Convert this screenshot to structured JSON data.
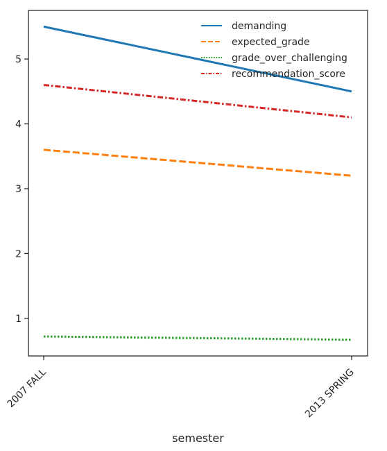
{
  "chart_data": {
    "type": "line",
    "title": "",
    "xlabel": "semester",
    "ylabel": "",
    "categories": [
      "2007 FALL",
      "2013 SPRING"
    ],
    "ylim": [
      0.42,
      5.75
    ],
    "yticks": [
      1,
      2,
      3,
      4,
      5
    ],
    "grid": false,
    "legend_position": "top-right",
    "series": [
      {
        "name": "demanding",
        "values": [
          5.5,
          4.5
        ],
        "color": "#1f77b4",
        "style": "solid"
      },
      {
        "name": "expected_grade",
        "values": [
          3.6,
          3.2
        ],
        "color": "#ff7f0e",
        "style": "dashed"
      },
      {
        "name": "grade_over_challenging",
        "values": [
          0.72,
          0.67
        ],
        "color": "#2ca02c",
        "style": "dotted"
      },
      {
        "name": "recommendation_score",
        "values": [
          4.6,
          4.1
        ],
        "color": "#d62728",
        "style": "dashdot"
      }
    ]
  }
}
